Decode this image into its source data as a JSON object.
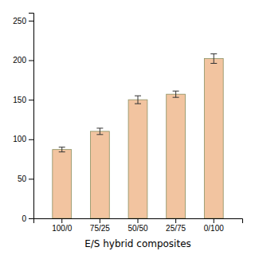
{
  "chart_data": {
    "type": "bar",
    "xlabel": "E/S hybrid composites",
    "categories": [
      "100/0",
      "75/25",
      "50/50",
      "25/75",
      "0/100"
    ],
    "values": [
      87,
      110,
      150,
      157,
      202
    ],
    "errors": [
      3,
      4,
      5,
      4,
      6
    ],
    "color": "#F2C4A0",
    "ylim": [
      0,
      260
    ],
    "yticks": [
      0,
      50,
      100,
      150,
      200,
      250
    ],
    "grid": false
  }
}
